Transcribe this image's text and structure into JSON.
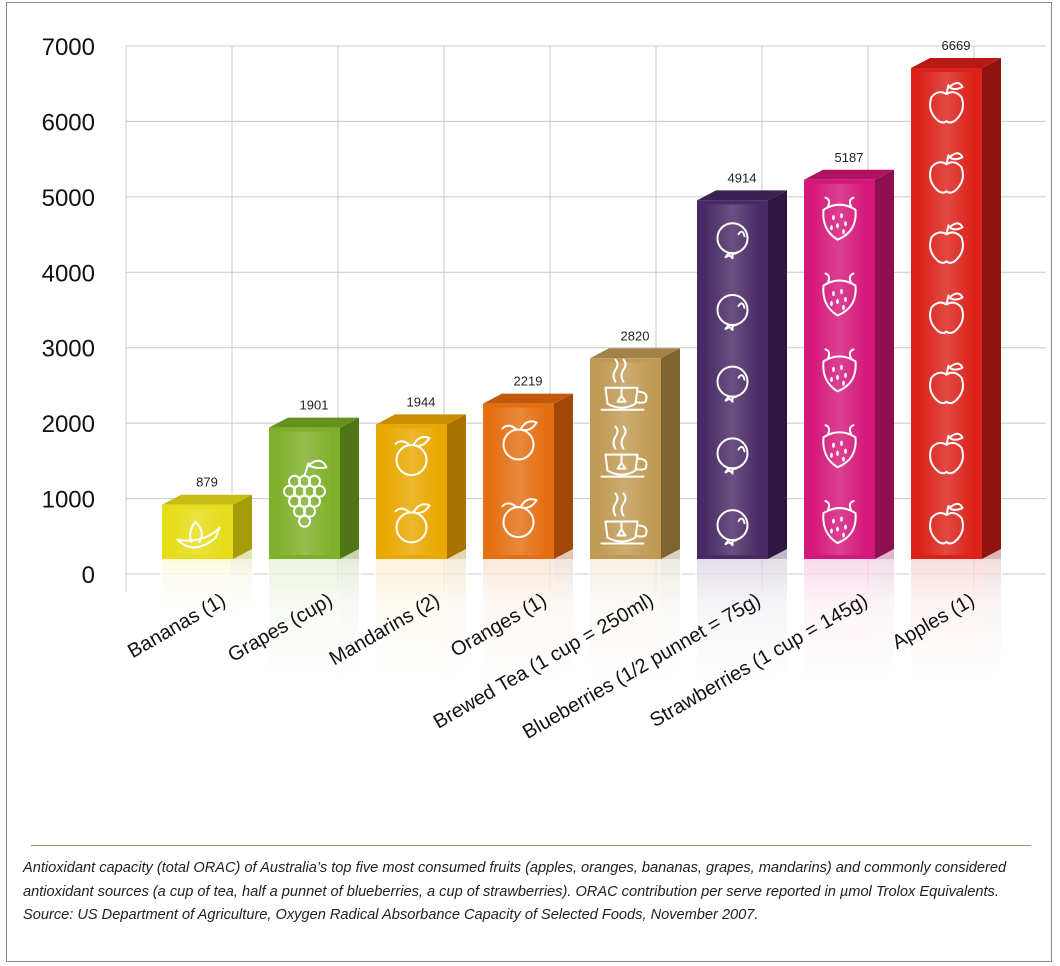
{
  "chart_data": {
    "type": "bar",
    "categories": [
      "Bananas (1)",
      "Grapes (cup)",
      "Mandarins (2)",
      "Oranges (1)",
      "Brewed Tea (1 cup = 250ml)",
      "Blueberries (1/2 punnet = 75g)",
      "Strawberries (1 cup = 145g)",
      "Apples (1)"
    ],
    "values": [
      879,
      1901,
      1944,
      2219,
      2820,
      4914,
      5187,
      6669
    ],
    "value_labels": [
      "879",
      "1901",
      "1944",
      "2219",
      "2820",
      "4914",
      "5187",
      "6669"
    ],
    "yticks": [
      "0",
      "1000",
      "2000",
      "3000",
      "4000",
      "5000",
      "6000",
      "7000"
    ],
    "ylim": [
      0,
      7000
    ],
    "grid": true,
    "bar_icons": [
      "banana-icon",
      "grapes-icon",
      "mandarin-icon",
      "orange-icon",
      "teacup-icon",
      "blueberry-icon",
      "strawberry-icon",
      "apple-icon"
    ],
    "colors": {
      "front": [
        "#e6dc19",
        "#7fb02a",
        "#e9a800",
        "#e46f12",
        "#c09a54",
        "#4a2a66",
        "#d4177a",
        "#db2119"
      ],
      "side": [
        "#a59c0a",
        "#4f7515",
        "#a87300",
        "#a14808",
        "#7d6431",
        "#2e1842",
        "#8e0e50",
        "#8f130e"
      ],
      "top": [
        "#c7bd12",
        "#66911f",
        "#c98e00",
        "#c25a0c",
        "#a3824a",
        "#3a2152",
        "#b0135f",
        "#b81a13"
      ]
    },
    "caption": "Antioxidant capacity (total ORAC) of Australia’s top five most consumed fruits (apples, oranges, bananas, grapes, mandarins) and commonly considered antioxidant sources (a cup of tea, half a punnet of blueberries, a cup of strawberries). ORAC contribution per serve reported in µmol Trolox Equivalents. Source: US Department of Agriculture, Oxygen Radical Absorbance Capacity of Selected Foods, November 2007."
  }
}
